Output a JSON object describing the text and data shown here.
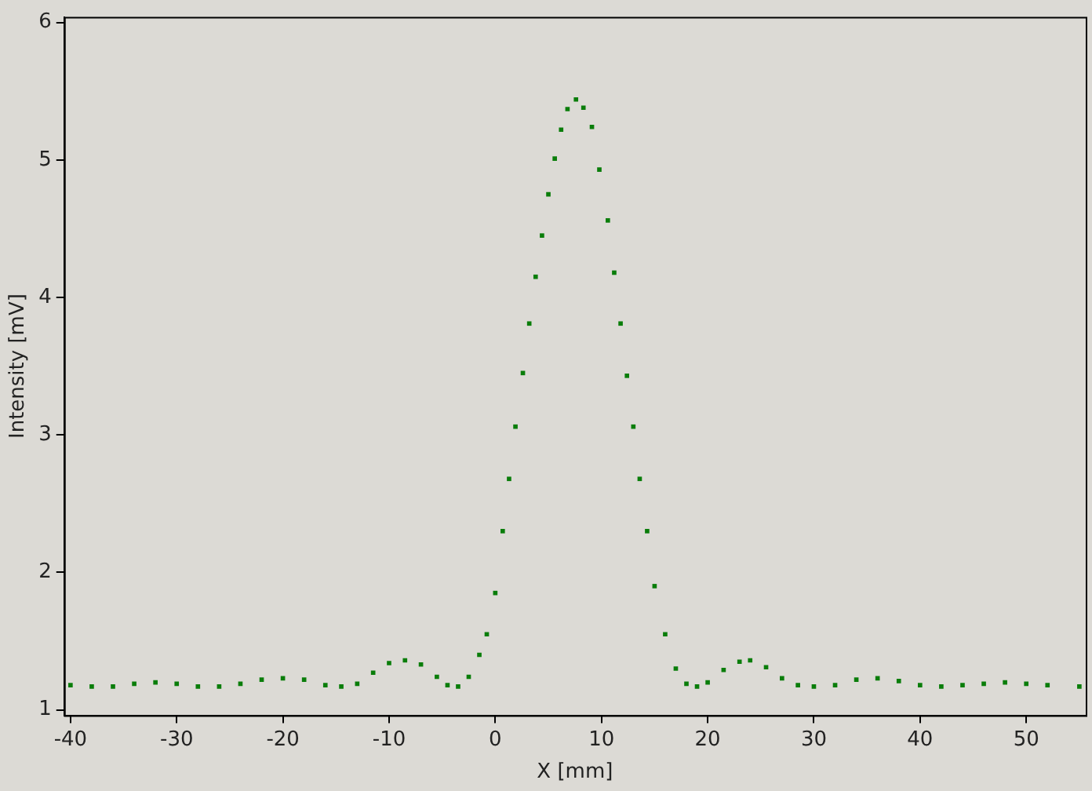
{
  "chart_data": {
    "type": "scatter",
    "xlabel": "X [mm]",
    "ylabel": "Intensity [mV]",
    "xlim": [
      -40.6,
      55.6
    ],
    "ylim": [
      0.96,
      6.04
    ],
    "xticks": [
      -40,
      -30,
      -20,
      -10,
      0,
      10,
      20,
      30,
      40,
      50
    ],
    "yticks": [
      1,
      2,
      3,
      4,
      5,
      6
    ],
    "grid": false,
    "legend": false,
    "marker": "square",
    "series": [
      {
        "color": "#0a7d0a",
        "x": [
          -40,
          -38,
          -36,
          -34,
          -32,
          -30,
          -28,
          -26,
          -24,
          -22,
          -20,
          -18,
          -16,
          -14.5,
          -13,
          -11.5,
          -10,
          -8.5,
          -7,
          -5.5,
          -4.5,
          -3.5,
          -2.5,
          -1.5,
          -0.8,
          0,
          0.7,
          1.3,
          1.9,
          2.6,
          3.2,
          3.8,
          4.4,
          5,
          5.6,
          6.2,
          6.8,
          7.6,
          8.3,
          9.1,
          9.8,
          10.6,
          11.2,
          11.8,
          12.4,
          13,
          13.6,
          14.3,
          15,
          16,
          17,
          18,
          19,
          20,
          21.5,
          23,
          24,
          25.5,
          27,
          28.5,
          30,
          32,
          34,
          36,
          38,
          40,
          42,
          44,
          46,
          48,
          50,
          52,
          55
        ],
        "values": [
          1.18,
          1.17,
          1.17,
          1.19,
          1.2,
          1.19,
          1.17,
          1.17,
          1.19,
          1.22,
          1.23,
          1.22,
          1.18,
          1.17,
          1.19,
          1.27,
          1.34,
          1.36,
          1.33,
          1.24,
          1.18,
          1.17,
          1.24,
          1.4,
          1.55,
          1.85,
          2.3,
          2.68,
          3.06,
          3.45,
          3.81,
          4.15,
          4.45,
          4.75,
          5.01,
          5.22,
          5.37,
          5.44,
          5.38,
          5.24,
          4.93,
          4.56,
          4.18,
          3.81,
          3.43,
          3.06,
          2.68,
          2.3,
          1.9,
          1.55,
          1.3,
          1.19,
          1.17,
          1.2,
          1.29,
          1.35,
          1.36,
          1.31,
          1.23,
          1.18,
          1.17,
          1.18,
          1.22,
          1.23,
          1.21,
          1.18,
          1.17,
          1.18,
          1.19,
          1.2,
          1.19,
          1.18,
          1.17
        ]
      }
    ]
  }
}
